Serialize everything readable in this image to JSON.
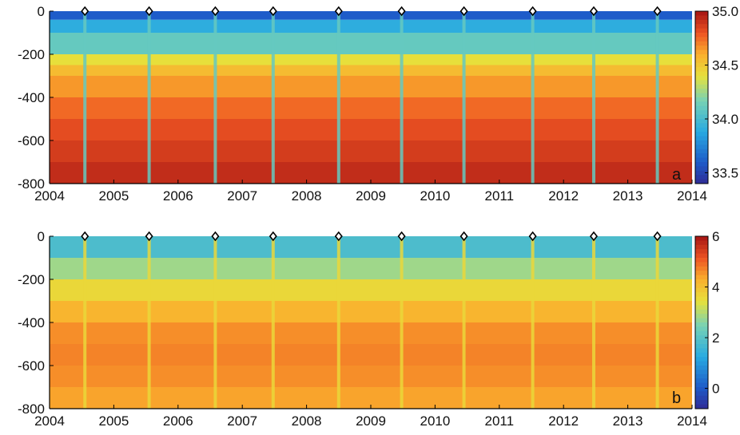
{
  "chart_data": [
    {
      "type": "heatmap",
      "panel_label": "a",
      "x": [
        "2004",
        "2005",
        "2006",
        "2007",
        "2008",
        "2009",
        "2010",
        "2011",
        "2012",
        "2013",
        "2014"
      ],
      "xlim": [
        2004,
        2014
      ],
      "y_ticks": [
        "0",
        "-200",
        "-400",
        "-600",
        "-800"
      ],
      "ylim": [
        -800,
        0
      ],
      "colorbar": {
        "ticks": [
          "35.0",
          "34.5",
          "34.0",
          "33.5"
        ],
        "range": [
          33.4,
          35.0
        ]
      },
      "markers_x": [
        2004.55,
        2005.55,
        2006.58,
        2007.48,
        2008.5,
        2009.48,
        2010.45,
        2011.52,
        2012.47,
        2013.46
      ],
      "bands": [
        {
          "depth": [
            0,
            -40
          ],
          "value": 33.6
        },
        {
          "depth": [
            -40,
            -100
          ],
          "value": 33.9
        },
        {
          "depth": [
            -100,
            -200
          ],
          "value": 34.1
        },
        {
          "depth": [
            -200,
            -250
          ],
          "value": 34.4
        },
        {
          "depth": [
            -250,
            -300
          ],
          "value": 34.55
        },
        {
          "depth": [
            -300,
            -400
          ],
          "value": 34.65
        },
        {
          "depth": [
            -400,
            -500
          ],
          "value": 34.75
        },
        {
          "depth": [
            -500,
            -600
          ],
          "value": 34.82
        },
        {
          "depth": [
            -600,
            -700
          ],
          "value": 34.87
        },
        {
          "depth": [
            -700,
            -800
          ],
          "value": 34.92
        }
      ]
    },
    {
      "type": "heatmap",
      "panel_label": "b",
      "x": [
        "2004",
        "2005",
        "2006",
        "2007",
        "2008",
        "2009",
        "2010",
        "2011",
        "2012",
        "2013",
        "2014"
      ],
      "xlim": [
        2004,
        2014
      ],
      "y_ticks": [
        "0",
        "-200",
        "-400",
        "-600",
        "-800"
      ],
      "ylim": [
        -800,
        0
      ],
      "colorbar": {
        "ticks": [
          "6",
          "4",
          "2",
          "0"
        ],
        "range": [
          -0.8,
          6
        ]
      },
      "markers_x": [
        2004.55,
        2005.55,
        2006.58,
        2007.48,
        2008.5,
        2009.48,
        2010.45,
        2011.52,
        2012.47,
        2013.46
      ],
      "bands": [
        {
          "depth": [
            0,
            -100
          ],
          "value": 1.8
        },
        {
          "depth": [
            -100,
            -200
          ],
          "value": 2.8
        },
        {
          "depth": [
            -200,
            -300
          ],
          "value": 3.6
        },
        {
          "depth": [
            -300,
            -400
          ],
          "value": 4.2
        },
        {
          "depth": [
            -400,
            -500
          ],
          "value": 4.6
        },
        {
          "depth": [
            -500,
            -600
          ],
          "value": 4.7
        },
        {
          "depth": [
            -600,
            -700
          ],
          "value": 4.6
        },
        {
          "depth": [
            -700,
            -800
          ],
          "value": 4.4
        }
      ]
    }
  ]
}
